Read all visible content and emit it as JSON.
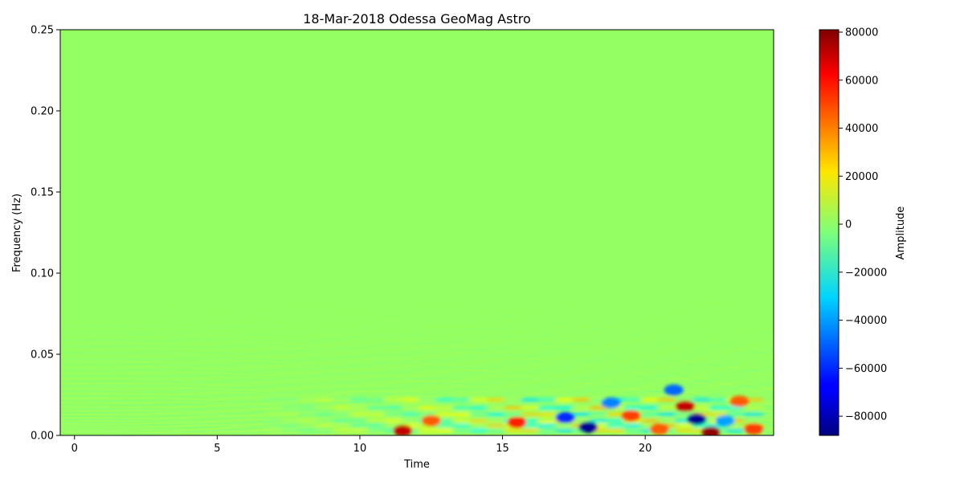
{
  "chart_data": {
    "type": "heatmap",
    "title": "18-Mar-2018 Odessa GeoMag Astro",
    "xlabel": "Time",
    "ylabel": "Frequency (Hz)",
    "xlim": [
      -0.5,
      24.5
    ],
    "ylim": [
      0,
      0.25
    ],
    "x_ticks": [
      0,
      5,
      10,
      15,
      20
    ],
    "x_tick_labels": [
      "0",
      "5",
      "10",
      "15",
      "20"
    ],
    "y_ticks": [
      0,
      0.05,
      0.1,
      0.15,
      0.2,
      0.25
    ],
    "y_tick_labels": [
      "0.00",
      "0.05",
      "0.10",
      "0.15",
      "0.20",
      "0.25"
    ],
    "colormap": "jet",
    "background_color": "#94ff62",
    "colorbar": {
      "label": "Amplitude",
      "range": [
        -88000,
        81000
      ],
      "ticks": [
        -80000,
        -60000,
        -40000,
        -20000,
        0,
        20000,
        40000,
        60000,
        80000
      ],
      "tick_labels": [
        "−80000",
        "−60000",
        "−40000",
        "−20000",
        "0",
        "20000",
        "40000",
        "60000",
        "80000"
      ]
    },
    "features": [
      {
        "t": 11.5,
        "f": 0.003,
        "amp": 70000
      },
      {
        "t": 12.5,
        "f": 0.009,
        "amp": 45000
      },
      {
        "t": 15.5,
        "f": 0.008,
        "amp": 55000
      },
      {
        "t": 17.2,
        "f": 0.011,
        "amp": -60000
      },
      {
        "t": 18.0,
        "f": 0.005,
        "amp": -85000
      },
      {
        "t": 18.8,
        "f": 0.02,
        "amp": -45000
      },
      {
        "t": 19.5,
        "f": 0.012,
        "amp": 50000
      },
      {
        "t": 20.5,
        "f": 0.004,
        "amp": 45000
      },
      {
        "t": 21.0,
        "f": 0.028,
        "amp": -50000
      },
      {
        "t": 21.4,
        "f": 0.018,
        "amp": 70000
      },
      {
        "t": 21.8,
        "f": 0.01,
        "amp": -85000
      },
      {
        "t": 22.3,
        "f": 0.002,
        "amp": 78000
      },
      {
        "t": 22.8,
        "f": 0.009,
        "amp": -40000
      },
      {
        "t": 23.3,
        "f": 0.021,
        "amp": 45000
      },
      {
        "t": 23.8,
        "f": 0.004,
        "amp": 50000
      }
    ]
  }
}
